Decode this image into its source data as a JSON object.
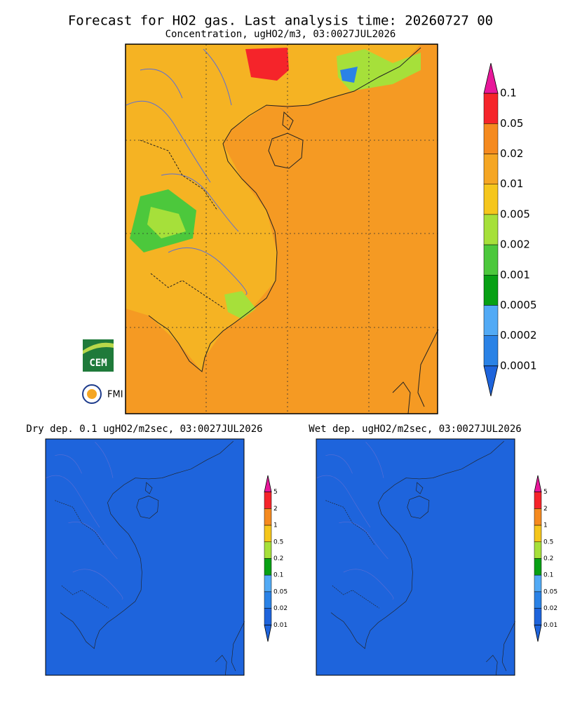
{
  "header": {
    "title": "Forecast for HO2 gas. Last analysis time: 20260727 00",
    "subtitle": "Concentration, ugHO2/m3, 03:0027JUL2026"
  },
  "main_colorbar": {
    "labels": [
      "0.1",
      "0.05",
      "0.02",
      "0.01",
      "0.005",
      "0.002",
      "0.001",
      "0.0005",
      "0.0002",
      "0.0001"
    ],
    "colors": [
      "#e8179a",
      "#f5242a",
      "#f58a1f",
      "#f5a623",
      "#f5c61c",
      "#a6e03a",
      "#4cc83c",
      "#07a014",
      "#52aaf5",
      "#2a82e6",
      "#1e64dc"
    ]
  },
  "panels": [
    {
      "title": "Dry dep. 0.1 ugHO2/m2sec, 03:0027JUL2026"
    },
    {
      "title": "Wet dep. ugHO2/m2sec, 03:0027JUL2026"
    }
  ],
  "small_colorbar": {
    "labels": [
      "5",
      "2",
      "1",
      "0.5",
      "0.2",
      "0.1",
      "0.05",
      "0.02",
      "0.01"
    ],
    "colors": [
      "#e8179a",
      "#f5242a",
      "#f58a1f",
      "#f5c61c",
      "#a6e03a",
      "#07a014",
      "#52aaf5",
      "#2a82e6",
      "#1e64dc",
      "#1e64dc"
    ]
  },
  "logos": {
    "cem": "CEM",
    "fmi": "FMI"
  }
}
